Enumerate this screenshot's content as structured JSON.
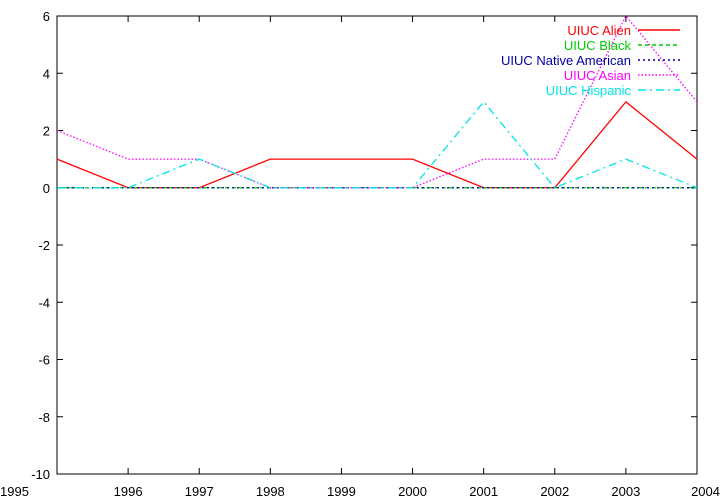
{
  "chart_data": {
    "type": "line",
    "title": "",
    "xlabel": "",
    "ylabel": "",
    "x": [
      1995,
      1996,
      1997,
      1998,
      1999,
      2000,
      2001,
      2002,
      2003,
      2004
    ],
    "x_ticks": [
      "1995",
      "1996",
      "1997",
      "1998",
      "1999",
      "2000",
      "2001",
      "2002",
      "2003",
      "2004"
    ],
    "y_ticks": [
      "6",
      "4",
      "2",
      "0",
      "-2",
      "-4",
      "-6",
      "-8",
      "-10"
    ],
    "xlim": [
      1995,
      2004
    ],
    "ylim": [
      -10,
      6
    ],
    "grid": false,
    "legend_position": "top-right",
    "series": [
      {
        "name": "UIUC Alien",
        "color": "#ff0000",
        "dash": "solid",
        "values": [
          1,
          0,
          0,
          1,
          1,
          1,
          0,
          0,
          3,
          1
        ]
      },
      {
        "name": "UIUC Black",
        "color": "#00cc00",
        "dash": "dashed",
        "values": [
          0,
          0,
          0,
          0,
          0,
          0,
          0,
          0,
          0,
          0
        ]
      },
      {
        "name": "UIUC Native American",
        "color": "#0000a0",
        "dash": "dotted",
        "values": [
          0,
          0,
          0,
          0,
          0,
          0,
          0,
          0,
          0,
          0
        ]
      },
      {
        "name": "UIUC Asian",
        "color": "#ff00ff",
        "dash": "fine-dotted",
        "values": [
          2,
          1,
          1,
          0,
          0,
          0,
          1,
          1,
          6,
          3
        ]
      },
      {
        "name": "UIUC Hispanic",
        "color": "#00e5e5",
        "dash": "dash-dot",
        "values": [
          0,
          0,
          1,
          0,
          0,
          0,
          3,
          0,
          1,
          0
        ]
      }
    ]
  }
}
